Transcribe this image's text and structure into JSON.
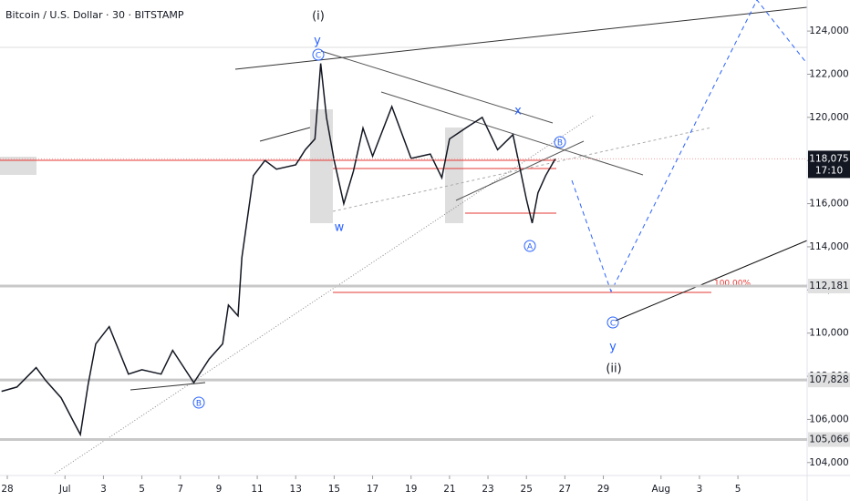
{
  "chart_data": {
    "type": "line",
    "title": "Bitcoin / U.S. Dollar · 30 · BITSTAMP",
    "x": [
      -0.3,
      0.5,
      1.5,
      2,
      2.8,
      3.5,
      3.8,
      4.2,
      4.6,
      5.3,
      5.8,
      6.3,
      7,
      8,
      8.6,
      9.7,
      10.5,
      11.2,
      11.5,
      12,
      12.2,
      12.8,
      13.4,
      14,
      15,
      15.5,
      16,
      16.3,
      16.6,
      17,
      17.5,
      18,
      18.5,
      19,
      20,
      21,
      22,
      22.6,
      23,
      24,
      24.7,
      25.5,
      26.3,
      27,
      27.3,
      27.6,
      28,
      28.5
    ],
    "series": [
      {
        "name": "BTCUSD",
        "color": "#131722",
        "values": [
          107300,
          107500,
          108400,
          107800,
          107000,
          105800,
          105300,
          107600,
          109500,
          110300,
          109200,
          108100,
          108300,
          108100,
          109200,
          107700,
          108800,
          109500,
          111300,
          110800,
          113500,
          117300,
          118000,
          117600,
          117800,
          118500,
          119000,
          122500,
          120000,
          118000,
          116000,
          117500,
          119500,
          118200,
          120500,
          118100,
          118300,
          117200,
          119000,
          119600,
          120000,
          118500,
          119200,
          116200,
          115100,
          116500,
          117300,
          118075
        ]
      }
    ],
    "xlim": [
      -0.38,
      41.6
    ],
    "ylim": [
      103400,
      125440
    ],
    "xticks": [
      {
        "value": 0,
        "label": "28"
      },
      {
        "value": 3,
        "label": "Jul"
      },
      {
        "value": 5,
        "label": "3"
      },
      {
        "value": 7,
        "label": "5"
      },
      {
        "value": 9,
        "label": "7"
      },
      {
        "value": 11,
        "label": "9"
      },
      {
        "value": 13,
        "label": "11"
      },
      {
        "value": 15,
        "label": "13"
      },
      {
        "value": 17,
        "label": "15"
      },
      {
        "value": 19,
        "label": "17"
      },
      {
        "value": 21,
        "label": "19"
      },
      {
        "value": 23,
        "label": "21"
      },
      {
        "value": 25,
        "label": "23"
      },
      {
        "value": 27,
        "label": "25"
      },
      {
        "value": 29,
        "label": "27"
      },
      {
        "value": 31,
        "label": "29"
      },
      {
        "value": 34,
        "label": "Aug"
      },
      {
        "value": 36,
        "label": "3"
      },
      {
        "value": 38,
        "label": "5"
      }
    ],
    "yticks": [
      {
        "value": 104000,
        "label": "104,000"
      },
      {
        "value": 106000,
        "label": "106,000"
      },
      {
        "value": 108000,
        "label": "108,000"
      },
      {
        "value": 110000,
        "label": "110,000"
      },
      {
        "value": 112000,
        "label": "112,000"
      },
      {
        "value": 114000,
        "label": "114,000"
      },
      {
        "value": 116000,
        "label": "116,000"
      },
      {
        "value": 118000,
        "label": "118,000"
      },
      {
        "value": 120000,
        "label": "120,000"
      },
      {
        "value": 122000,
        "label": "122,000"
      },
      {
        "value": 124000,
        "label": "124,000"
      }
    ],
    "price_lines": [
      {
        "value": 112181,
        "label": "112,181"
      },
      {
        "value": 107828,
        "label": "107,828"
      },
      {
        "value": 105066,
        "label": "105,066"
      }
    ],
    "last_price": {
      "value": 118075,
      "label": "118,075",
      "countdown": "17:10"
    },
    "annotations": [
      "(i)",
      "y",
      "C",
      "w",
      "x",
      "B",
      "A",
      "100.00%",
      "C",
      "y",
      "(ii)",
      "B"
    ]
  }
}
